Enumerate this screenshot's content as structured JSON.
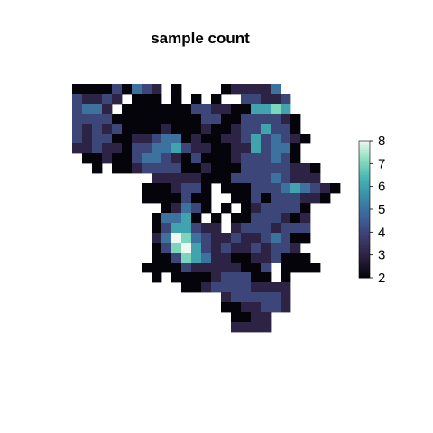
{
  "chart_data": {
    "type": "heatmap",
    "title": "sample count",
    "xlabel": "",
    "ylabel": "",
    "color_scale": {
      "min": 2,
      "max": 8,
      "ticks": [
        2,
        3,
        4,
        5,
        6,
        7,
        8
      ],
      "colors": [
        "#04040a",
        "#2a1e3c",
        "#3b3a6a",
        "#3f5d96",
        "#3a86a8",
        "#44b1b0",
        "#86ddbe",
        "#eef8f2"
      ]
    },
    "grid_rows": [
      "....................",
      "001141543.0....133335",
      "43343.222.2.2.2..44334",
      "4553.22222224433226676",
      "44442222222224422444432",
      "43434222232223223446442",
      "434422334552322334645432",
      "33433244556433223364552",
      ".0032245543242223444542",
      "..0.003444422322044444332",
      "........33333222444454333",
      ".......0223442.022444565432",
      ".......2222422..2242444332",
      ".........23542.2.2344442",
      "........25562.2.22444323",
      "........2466433.34443444",
      "........3587543343345422",
      "........247864343343443",
      "........2247653322334222",
      ".......0012433333224.2222",
      "........0.2222344422.2",
      "...........00344443333",
      "...............3444443",
      "...............2233443",
      "................2233",
      "................3333"
    ]
  }
}
